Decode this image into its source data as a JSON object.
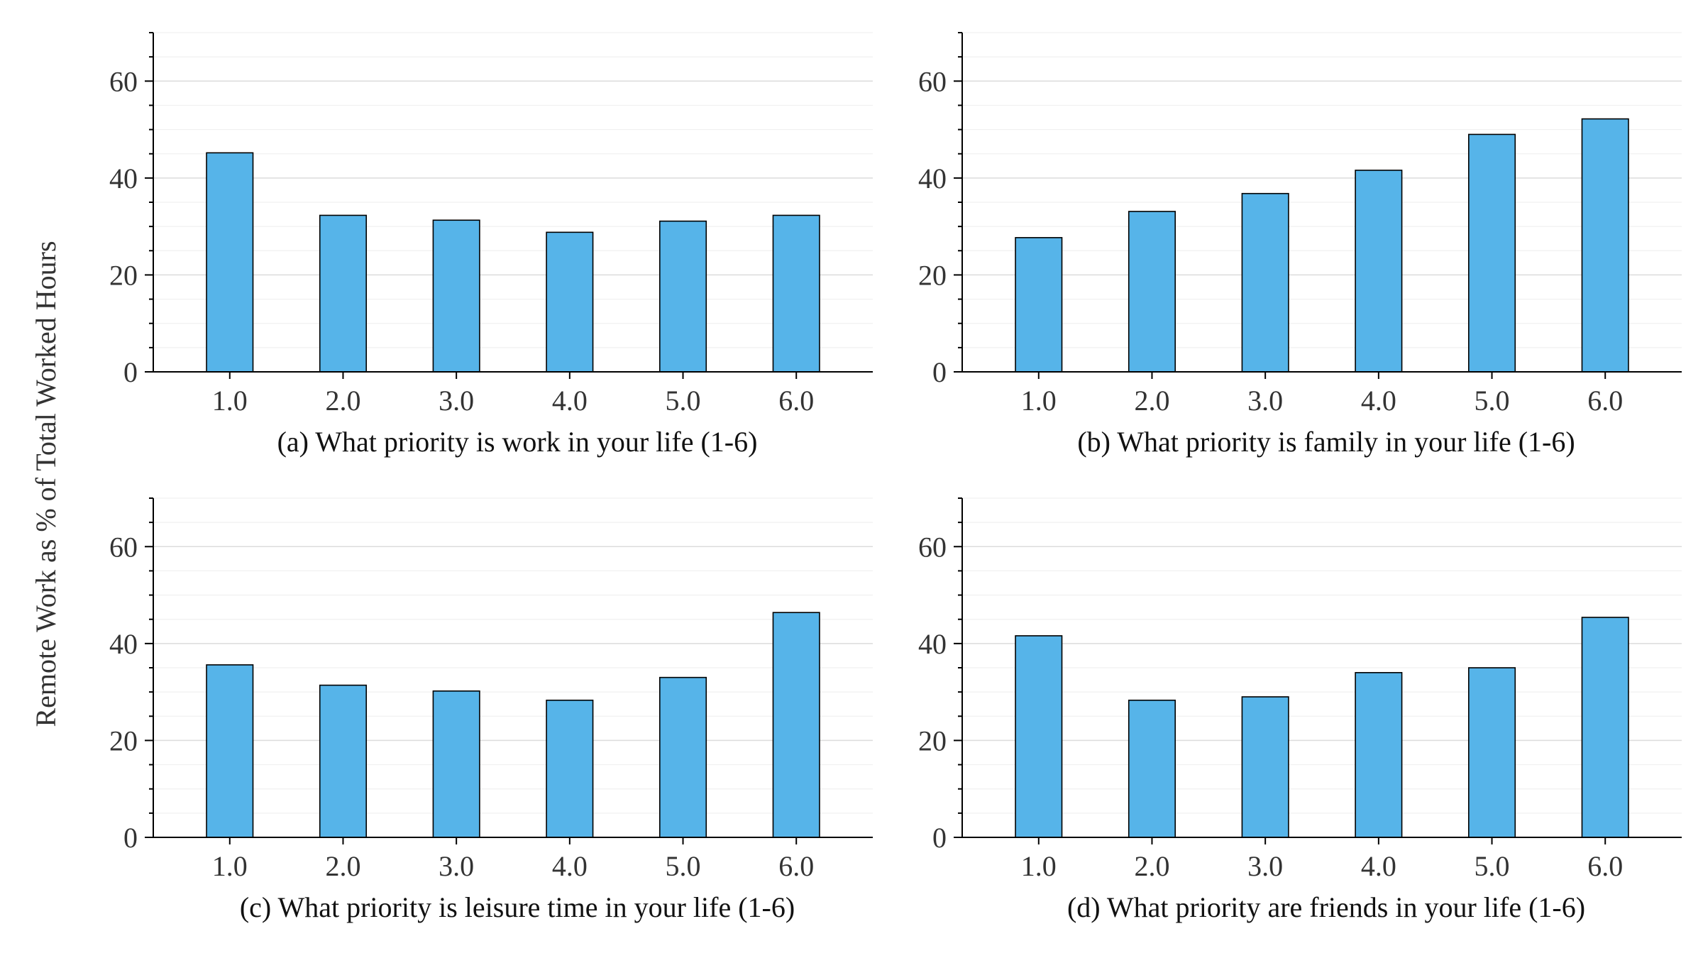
{
  "figure": {
    "shared_ylabel": "Remote Work as % of Total Worked Hours",
    "bar_color": "#56b4e9"
  },
  "chart_data": [
    {
      "type": "bar",
      "title": "(a) What priority is work in your life (1-6)",
      "categories": [
        "1.0",
        "2.0",
        "3.0",
        "4.0",
        "5.0",
        "6.0"
      ],
      "values": [
        45.2,
        32.3,
        31.3,
        28.8,
        31.1,
        32.3
      ],
      "xlabel": "(a) What priority is work in your life (1-6)",
      "ylabel": "Remote Work as % of Total Worked Hours",
      "ylim": [
        0,
        70
      ],
      "yticks": [
        "0",
        "20",
        "40",
        "60"
      ],
      "grid": true
    },
    {
      "type": "bar",
      "title": "(b) What priority is family in your life (1-6)",
      "categories": [
        "1.0",
        "2.0",
        "3.0",
        "4.0",
        "5.0",
        "6.0"
      ],
      "values": [
        27.7,
        33.1,
        36.8,
        41.6,
        49.0,
        52.2
      ],
      "xlabel": "(b) What priority is family in your life (1-6)",
      "ylabel": "Remote Work as % of Total Worked Hours",
      "ylim": [
        0,
        70
      ],
      "yticks": [
        "0",
        "20",
        "40",
        "60"
      ],
      "grid": true
    },
    {
      "type": "bar",
      "title": "(c) What priority is leisure time in your life (1-6)",
      "categories": [
        "1.0",
        "2.0",
        "3.0",
        "4.0",
        "5.0",
        "6.0"
      ],
      "values": [
        35.6,
        31.4,
        30.2,
        28.3,
        33.0,
        46.4
      ],
      "xlabel": "(c) What priority is leisure time in your life (1-6)",
      "ylabel": "Remote Work as % of Total Worked Hours",
      "ylim": [
        0,
        70
      ],
      "yticks": [
        "0",
        "20",
        "40",
        "60"
      ],
      "grid": true
    },
    {
      "type": "bar",
      "title": "(d) What priority are friends in your life (1-6)",
      "categories": [
        "1.0",
        "2.0",
        "3.0",
        "4.0",
        "5.0",
        "6.0"
      ],
      "values": [
        41.6,
        28.3,
        29.0,
        34.0,
        35.0,
        45.4
      ],
      "xlabel": "(d) What priority are friends in your life (1-6)",
      "ylabel": "Remote Work as % of Total Worked Hours",
      "ylim": [
        0,
        70
      ],
      "yticks": [
        "0",
        "20",
        "40",
        "60"
      ],
      "grid": true
    }
  ]
}
